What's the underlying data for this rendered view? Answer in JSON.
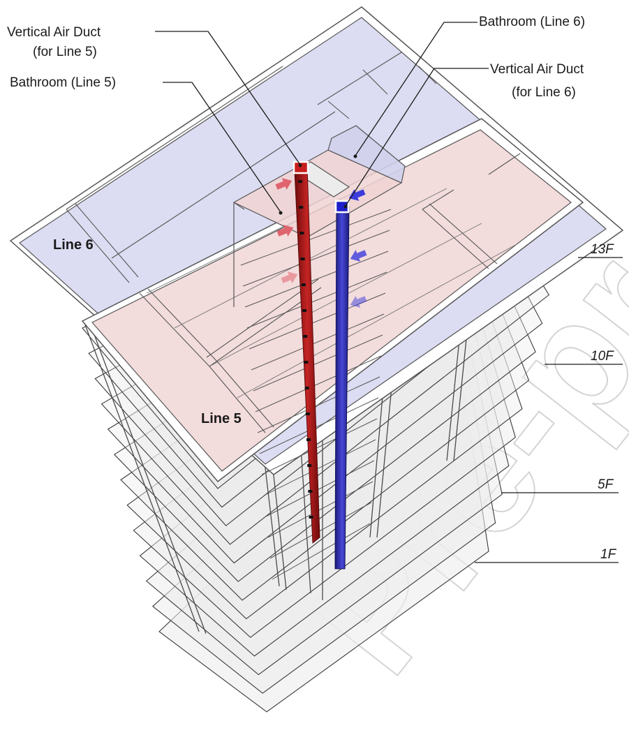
{
  "callouts": {
    "duct_line5": [
      "Vertical Air Duct",
      "(for Line 5)"
    ],
    "bathroom_line5": "Bathroom (Line 5)",
    "bathroom_line6": "Bathroom (Line 6)",
    "duct_line6": [
      "Vertical Air Duct",
      "(for Line 6)"
    ]
  },
  "zones": {
    "line6": "Line 6",
    "line5": "Line 5"
  },
  "floors": [
    "13F",
    "10F",
    "5F",
    "1F"
  ],
  "watermark": "Pre-pr",
  "colors": {
    "line5_fill": "#f3dcdc",
    "line6_fill": "#dcdcf2",
    "duct_line5": "#a31a1a",
    "duct_line6": "#2c2cb2",
    "arrow_line5": "#e0646e",
    "arrow_line6": "#3c3cdc",
    "frame": "#4a4a4a"
  }
}
